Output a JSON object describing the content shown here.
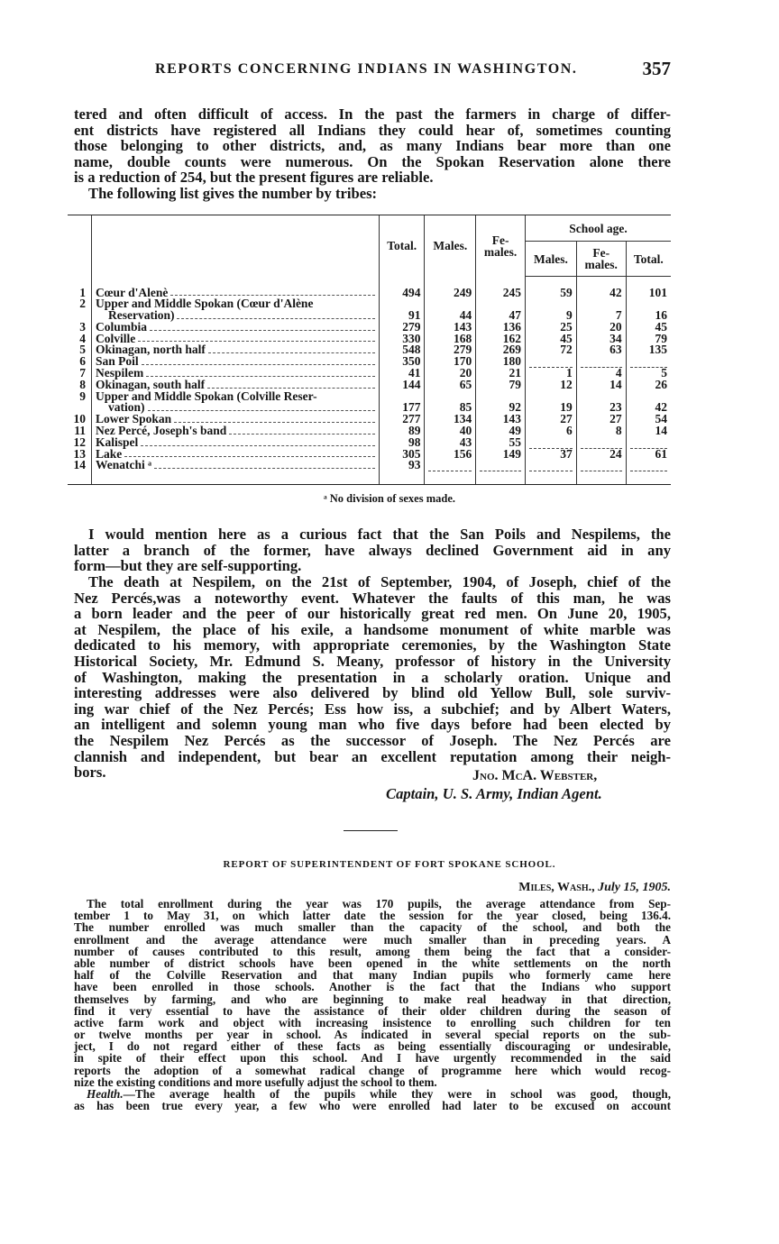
{
  "header": {
    "title": "REPORTS CONCERNING INDIANS IN WASHINGTON.",
    "page_number": "357"
  },
  "intro": {
    "lines": [
      "tered and often difficult of access. In the past the farmers in charge of differ-",
      "ent districts have registered all Indians they could hear of, sometimes counting",
      "those belonging to other districts, and, as many Indians bear more than one",
      "name, double counts were numerous. On the Spokan Reservation alone there",
      "is a reduction of 254, but the present figures are reliable.",
      "The following list gives the number by tribes:"
    ]
  },
  "table": {
    "headers": {
      "total": "Total.",
      "males": "Males.",
      "females": "Fe-\nmales.",
      "school_age": "School age.",
      "school_males": "Males.",
      "school_females": "Fe-\nmales.",
      "school_total": "Total."
    },
    "rows": [
      {
        "n": "1",
        "name": [
          "Cœur d'Alenè"
        ],
        "total": "494",
        "males": "249",
        "females": "245",
        "s_males": "59",
        "s_females": "42",
        "s_total": "101"
      },
      {
        "n": "2",
        "name": [
          "Upper and Middle Spokan (Cœur d'Alène",
          "Reservation)"
        ],
        "total": "91",
        "males": "44",
        "females": "47",
        "s_males": "9",
        "s_females": "7",
        "s_total": "16"
      },
      {
        "n": "3",
        "name": [
          "Columbia"
        ],
        "total": "279",
        "males": "143",
        "females": "136",
        "s_males": "25",
        "s_females": "20",
        "s_total": "45"
      },
      {
        "n": "4",
        "name": [
          "Colville"
        ],
        "total": "330",
        "males": "168",
        "females": "162",
        "s_males": "45",
        "s_females": "34",
        "s_total": "79"
      },
      {
        "n": "5",
        "name": [
          "Okinagan, north half"
        ],
        "total": "548",
        "males": "279",
        "females": "269",
        "s_males": "72",
        "s_females": "63",
        "s_total": "135"
      },
      {
        "n": "6",
        "name": [
          "San Poil"
        ],
        "total": "350",
        "males": "170",
        "females": "180",
        "s_males": "",
        "s_females": "",
        "s_total": ""
      },
      {
        "n": "7",
        "name": [
          "Nespilem"
        ],
        "total": "41",
        "males": "20",
        "females": "21",
        "s_males": "1",
        "s_females": "4",
        "s_total": "5"
      },
      {
        "n": "8",
        "name": [
          "Okinagan, south half"
        ],
        "total": "144",
        "males": "65",
        "females": "79",
        "s_males": "12",
        "s_females": "14",
        "s_total": "26"
      },
      {
        "n": "9",
        "name": [
          "Upper and Middle Spokan (Colville Reser-",
          "vation)"
        ],
        "total": "177",
        "males": "85",
        "females": "92",
        "s_males": "19",
        "s_females": "23",
        "s_total": "42"
      },
      {
        "n": "10",
        "name": [
          "Lower Spokan"
        ],
        "total": "277",
        "males": "134",
        "females": "143",
        "s_males": "27",
        "s_females": "27",
        "s_total": "54"
      },
      {
        "n": "11",
        "name": [
          "Nez Percé, Joseph's band"
        ],
        "total": "89",
        "males": "40",
        "females": "49",
        "s_males": "6",
        "s_females": "8",
        "s_total": "14"
      },
      {
        "n": "12",
        "name": [
          "Kalispel"
        ],
        "total": "98",
        "males": "43",
        "females": "55",
        "s_males": "",
        "s_females": "",
        "s_total": ""
      },
      {
        "n": "13",
        "name": [
          "Lake"
        ],
        "total": "305",
        "males": "156",
        "females": "149",
        "s_males": "37",
        "s_females": "24",
        "s_total": "61"
      },
      {
        "n": "14",
        "name": [
          "Wenatchi ᵃ"
        ],
        "total": "93",
        "males": "",
        "females": "",
        "s_males": "",
        "s_females": "",
        "s_total": ""
      }
    ],
    "footnote": "ᵃ No division of sexes made."
  },
  "para_nespilem": {
    "lines": [
      "I would mention here as a curious fact that the San Poils and Nespilems, the",
      "latter a branch of the former, have always declined Government aid in any",
      "form—but they are self-supporting."
    ]
  },
  "para_joseph": {
    "lines": [
      "The death at Nespilem, on the 21st of September, 1904, of Joseph, chief of the",
      "Nez Percés,was a noteworthy event. Whatever the faults of this man, he was",
      "a born leader and the peer of our historically great red men. On June 20, 1905,",
      "at Nespilem, the place of his exile, a handsome monument of white marble was",
      "dedicated to his memory, with appropriate ceremonies, by the Washington State",
      "Historical Society, Mr. Edmund S. Meany, professor of history in the University",
      "of Washington, making the presentation in a scholarly oration. Unique and",
      "interesting addresses were also delivered by blind old Yellow Bull, sole surviv-",
      "ing war chief of the Nez Percés; Ess how iss, a subchief; and by Albert Waters,",
      "an intelligent and solemn young man who five days before had been elected by",
      "the Nespilem Nez Percés as the successor of Joseph. The Nez Percés are",
      "clannish and independent, but bear an excellent reputation among their neigh-",
      "bors."
    ]
  },
  "signature": {
    "name": "Jno. McA. Webster,",
    "title": "Captain, U. S. Army, Indian Agent."
  },
  "report": {
    "title": "REPORT OF SUPERINTENDENT OF FORT SPOKANE SCHOOL.",
    "place": "Miles, Wash.,",
    "date": "July 15, 1905.",
    "body_lines": [
      "The total enrollment during the year was 170 pupils, the average attendance from Sep-",
      "tember 1 to May 31, on which latter date the session for the year closed, being 136.4.",
      "The number enrolled was much smaller than the capacity of the school, and both the",
      "enrollment and the average attendance were much smaller than in preceding years. A",
      "number of causes contributed to this result, among them being the fact that a consider-",
      "able number of district schools have been opened in the white settlements on the north",
      "half of the Colville Reservation and that many Indian pupils who formerly came here",
      "have been enrolled in those schools. Another is the fact that the Indians who support",
      "themselves by farming, and who are beginning to make real headway in that direction,",
      "find it very essential to have the assistance of their older children during the season of",
      "active farm work and object with increasing insistence to enrolling such children for ten",
      "or twelve months per year in school. As indicated in several special reports on the sub-",
      "ject, I do not regard either of these facts as being essentially discouraging or undesirable,",
      "in spite of their effect upon this school. And I have urgently recommended in the said",
      "reports the adoption of a somewhat radical change of programme here which would recog-",
      "nize the existing conditions and more usefully adjust the school to them."
    ],
    "health_label": "Health.",
    "health_first": "—The average health of the pupils while they were in school was good, though,",
    "health_lines": [
      "as has been true every year, a few who were enrolled had later to be excused on account"
    ]
  }
}
